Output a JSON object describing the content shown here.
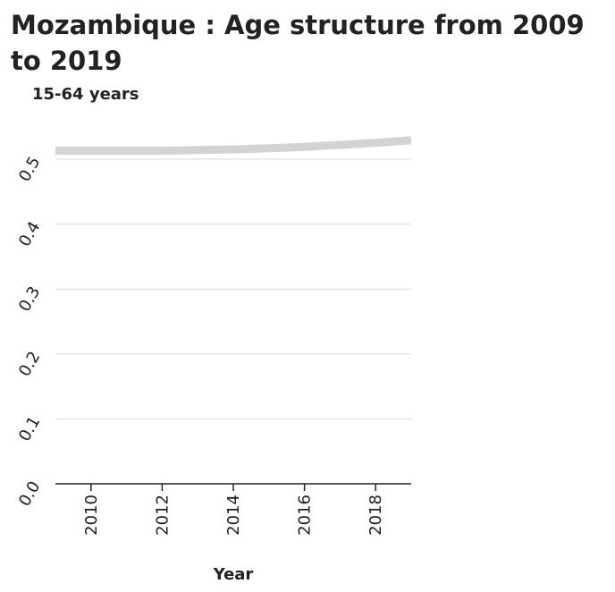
{
  "chart_data": {
    "type": "line",
    "title": "Mozambique : Age structure from 2009 to 2019",
    "ylabel": "15-64 years",
    "xlabel": "Year",
    "x": [
      2009,
      2010,
      2011,
      2012,
      2013,
      2014,
      2015,
      2016,
      2017,
      2018,
      2019
    ],
    "series": [
      {
        "values": [
          0.513,
          0.513,
          0.513,
          0.513,
          0.514,
          0.515,
          0.517,
          0.519,
          0.522,
          0.525,
          0.529
        ]
      }
    ],
    "xlim": [
      2009,
      2019
    ],
    "ylim": [
      0,
      0.5
    ],
    "xticks": [
      "2010",
      "2012",
      "2014",
      "2016",
      "2018"
    ],
    "yticks": [
      "0.0",
      "0.1",
      "0.2",
      "0.3",
      "0.4",
      "0.5"
    ],
    "grid": "horizontal",
    "line_color": "#d3d3d3"
  }
}
